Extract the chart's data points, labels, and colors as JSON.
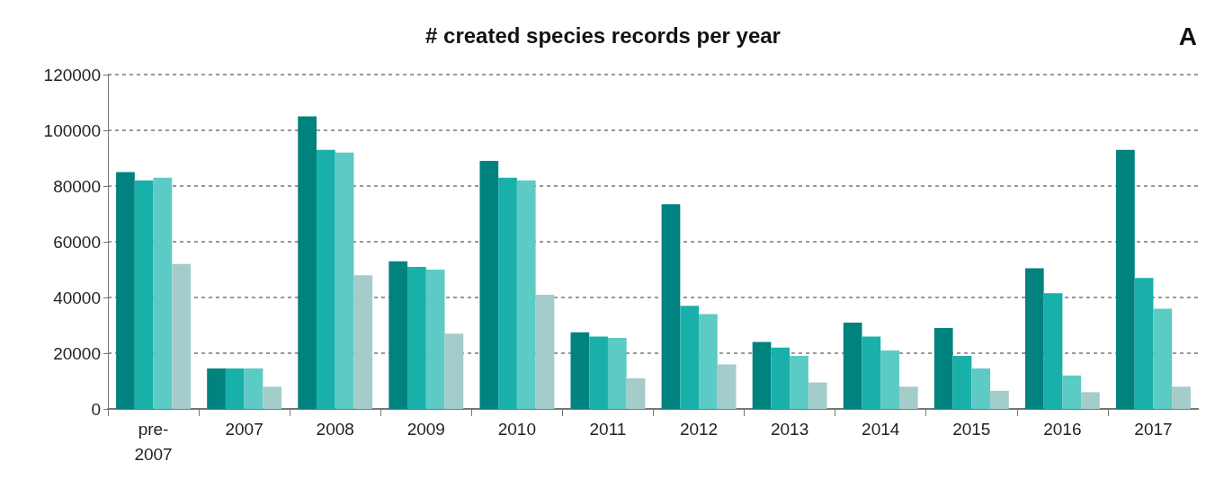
{
  "chart_data": {
    "type": "bar",
    "title": "# created species records per year",
    "annotations": [
      "A"
    ],
    "categories": [
      "pre-2007",
      "2007",
      "2008",
      "2009",
      "2010",
      "2011",
      "2012",
      "2013",
      "2014",
      "2015",
      "2016",
      "2017"
    ],
    "series": [
      {
        "color": "#00827f",
        "values": [
          85000,
          14500,
          105000,
          53000,
          89000,
          27500,
          73500,
          24000,
          31000,
          29000,
          50500,
          93000
        ]
      },
      {
        "color": "#1ab0aa",
        "values": [
          82000,
          14500,
          93000,
          51000,
          83000,
          26000,
          37000,
          22000,
          26000,
          19000,
          41500,
          47000
        ]
      },
      {
        "color": "#5ccac5",
        "values": [
          83000,
          14500,
          92000,
          50000,
          82000,
          25500,
          34000,
          19000,
          21000,
          14500,
          12000,
          36000
        ]
      },
      {
        "color": "#a3cccb",
        "values": [
          52000,
          8000,
          48000,
          27000,
          41000,
          11000,
          16000,
          9500,
          8000,
          6500,
          6000,
          8000
        ]
      }
    ],
    "ylim": [
      0,
      120000
    ],
    "yticks": [
      0,
      20000,
      40000,
      60000,
      80000,
      100000,
      120000
    ],
    "grid": "y"
  }
}
